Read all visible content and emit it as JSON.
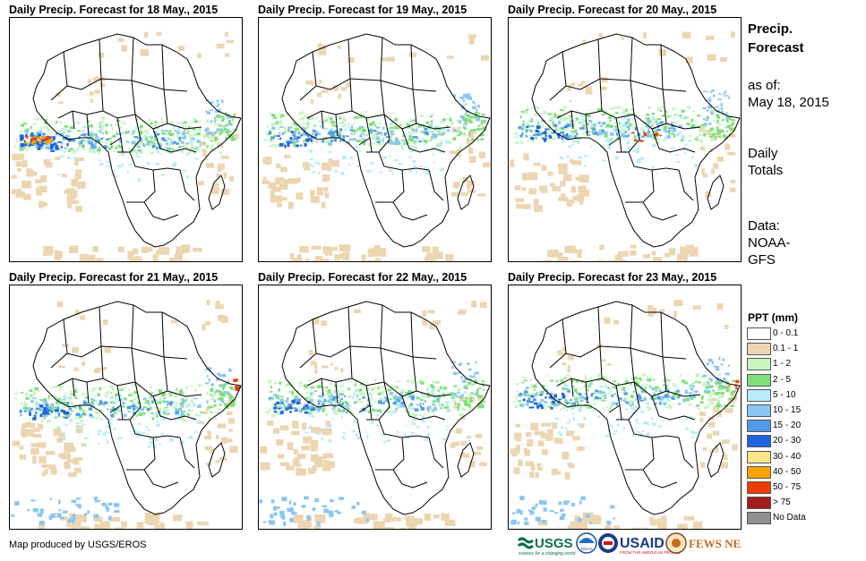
{
  "panels": [
    {
      "title": "Daily Precip. Forecast for 18 May., 2015"
    },
    {
      "title": "Daily Precip. Forecast for 19 May., 2015"
    },
    {
      "title": "Daily Precip. Forecast for 20 May., 2015"
    },
    {
      "title": "Daily Precip. Forecast for 21 May., 2015"
    },
    {
      "title": "Daily Precip. Forecast for 22 May., 2015"
    },
    {
      "title": "Daily Precip. Forecast for 23 May., 2015"
    }
  ],
  "sidebar": {
    "title_line1": "Precip.",
    "title_line2": "Forecast",
    "asof_label": "as of:",
    "asof_date": "May 18, 2015",
    "totals_line1": "Daily",
    "totals_line2": "Totals",
    "data_line1": "Data:",
    "data_line2": "NOAA-",
    "data_line3": "GFS"
  },
  "legend": {
    "title": "PPT (mm)",
    "items": [
      {
        "label": "0 - 0.1",
        "color": "#ffffff"
      },
      {
        "label": "0.1 - 1",
        "color": "#ecd6b2"
      },
      {
        "label": "1 - 2",
        "color": "#c9f5c0"
      },
      {
        "label": "2 - 5",
        "color": "#7fe07a"
      },
      {
        "label": "5 - 10",
        "color": "#b8ecf7"
      },
      {
        "label": "10 - 15",
        "color": "#8cc6f2"
      },
      {
        "label": "15 - 20",
        "color": "#4f9be8"
      },
      {
        "label": "20 - 30",
        "color": "#1f63e0"
      },
      {
        "label": "30 - 40",
        "color": "#fde58a"
      },
      {
        "label": "40 - 50",
        "color": "#f5a300"
      },
      {
        "label": "50 - 75",
        "color": "#f23c00"
      },
      {
        "label": "> 75",
        "color": "#a51c1c"
      },
      {
        "label": "No Data",
        "color": "#909090"
      }
    ]
  },
  "credit": "Map produced by USGS/EROS",
  "logos": {
    "usgs": "USGS",
    "usgs_tagline": "science for a changing world",
    "noaa": "NOAA",
    "usaid": "USAID",
    "usaid_tagline": "FROM THE AMERICAN PEOPLE",
    "fewsnet": "FEWS NET"
  }
}
